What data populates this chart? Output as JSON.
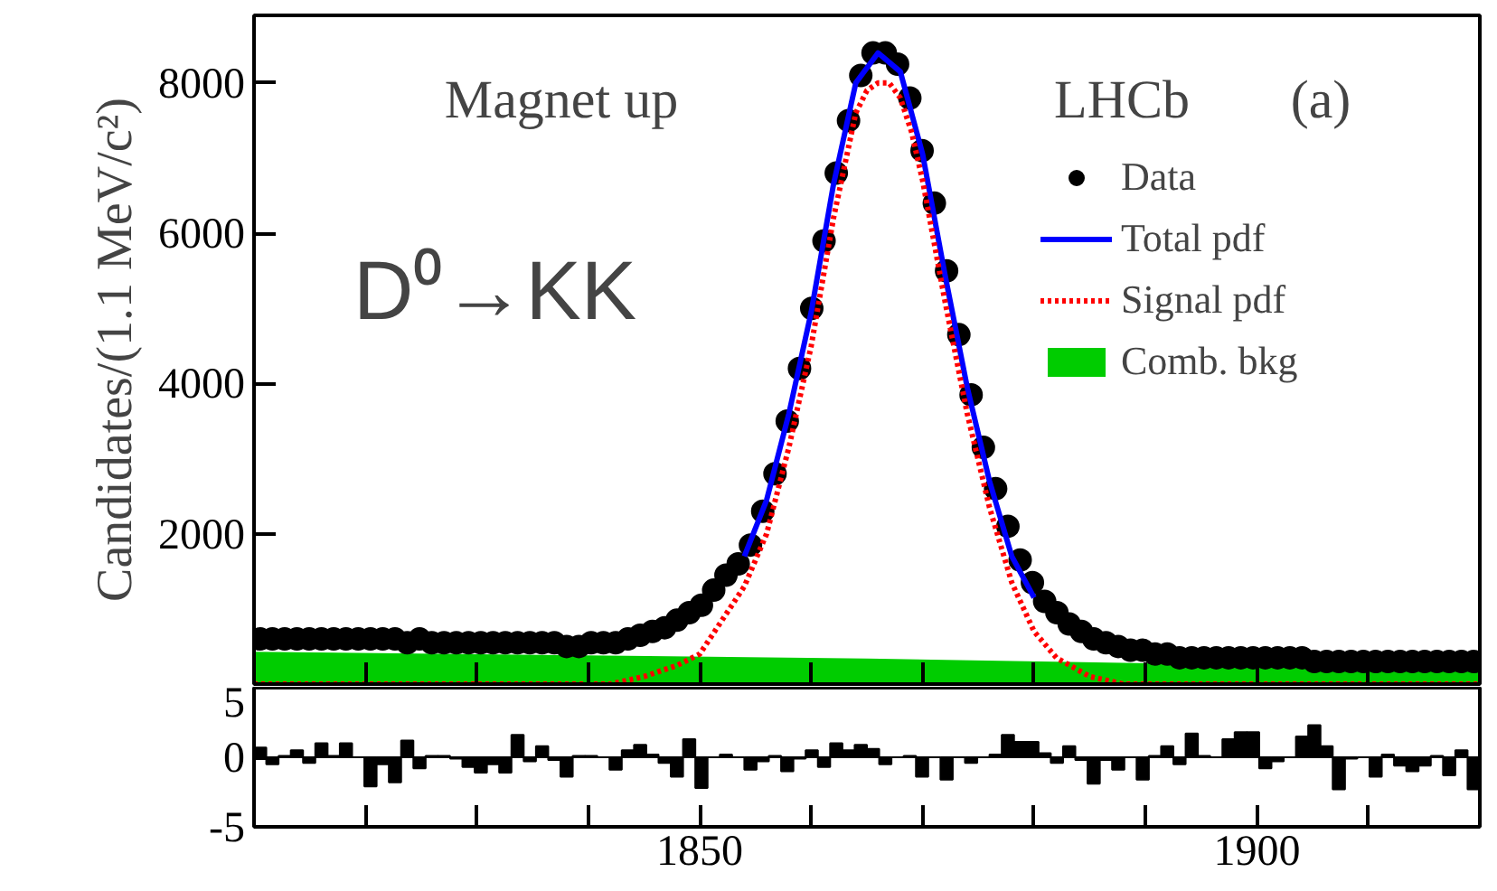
{
  "chart_data": [
    {
      "type": "scatter",
      "ylabel": "Candidates/(1.1 MeV/c²)",
      "xlim": [
        1810,
        1920
      ],
      "ylim": [
        0,
        8900
      ],
      "xticks": [
        1810,
        1820,
        1830,
        1840,
        1850,
        1860,
        1870,
        1880,
        1890,
        1900,
        1910,
        1920
      ],
      "yticks": [
        2000,
        4000,
        6000,
        8000
      ],
      "tick_labels": "y",
      "grid": false,
      "legend": "top right",
      "annotations": [
        "Magnet up",
        "D⁰→KK",
        "LHCb",
        "(a)"
      ],
      "x": [
        1810.55,
        1811.65,
        1812.75,
        1813.85,
        1814.95,
        1816.05,
        1817.15,
        1818.25,
        1819.35,
        1820.45,
        1821.55,
        1822.65,
        1823.75,
        1824.85,
        1825.95,
        1827.05,
        1828.15,
        1829.25,
        1830.35,
        1831.45,
        1832.55,
        1833.65,
        1834.75,
        1835.85,
        1836.95,
        1838.05,
        1839.15,
        1840.25,
        1841.35,
        1842.45,
        1843.55,
        1844.65,
        1845.75,
        1846.85,
        1847.95,
        1849.05,
        1850.15,
        1851.25,
        1852.35,
        1853.45,
        1854.55,
        1855.65,
        1856.75,
        1857.85,
        1858.95,
        1860.05,
        1861.15,
        1862.25,
        1863.35,
        1864.45,
        1865.55,
        1866.65,
        1867.75,
        1868.85,
        1869.95,
        1871.05,
        1872.15,
        1873.25,
        1874.35,
        1875.45,
        1876.55,
        1877.65,
        1878.75,
        1879.85,
        1880.95,
        1882.05,
        1883.15,
        1884.25,
        1885.35,
        1886.45,
        1887.55,
        1888.65,
        1889.75,
        1890.85,
        1891.95,
        1893.05,
        1894.15,
        1895.25,
        1896.35,
        1897.45,
        1898.55,
        1899.65,
        1900.75,
        1901.85,
        1902.95,
        1904.05,
        1905.15,
        1906.25,
        1907.35,
        1908.45,
        1909.55,
        1910.65,
        1911.75,
        1912.85,
        1913.95,
        1915.05,
        1916.15,
        1917.25,
        1918.35,
        1919.45
      ],
      "series": [
        {
          "name": "Data",
          "type": "scatter",
          "marker": "circle",
          "color": "#000000",
          "values": [
            600,
            600,
            600,
            600,
            600,
            600,
            600,
            600,
            600,
            600,
            600,
            600,
            550,
            600,
            550,
            550,
            550,
            550,
            550,
            550,
            550,
            550,
            550,
            550,
            550,
            500,
            500,
            550,
            550,
            550,
            600,
            650,
            700,
            750,
            850,
            950,
            1050,
            1250,
            1450,
            1600,
            1850,
            2300,
            2800,
            3500,
            4200,
            5000,
            5900,
            6800,
            7500,
            8100,
            8400,
            8400,
            8250,
            7800,
            7100,
            6400,
            5500,
            4650,
            3850,
            3150,
            2600,
            2100,
            1650,
            1350,
            1100,
            950,
            800,
            700,
            600,
            550,
            500,
            450,
            450,
            400,
            400,
            350,
            350,
            350,
            350,
            350,
            350,
            350,
            350,
            350,
            350,
            350,
            300,
            300,
            300,
            300,
            300,
            300,
            300,
            300,
            300,
            300,
            300,
            300,
            300,
            300
          ]
        },
        {
          "name": "Total pdf",
          "type": "line",
          "line_style": "solid",
          "color": "#0000ff",
          "x": [
            1854,
            1856,
            1858,
            1860,
            1862,
            1864,
            1866,
            1868,
            1870,
            1872,
            1874,
            1876,
            1878,
            1880
          ],
          "values": [
            1700,
            2450,
            3600,
            4950,
            6650,
            8000,
            8400,
            8150,
            7050,
            5450,
            3950,
            2700,
            1700,
            1150
          ]
        },
        {
          "name": "Signal pdf",
          "type": "line",
          "line_style": "dotted",
          "color": "#ff0000",
          "x": [
            1810,
            1820,
            1830,
            1838,
            1842,
            1845,
            1848,
            1850,
            1852,
            1854,
            1856,
            1858,
            1860,
            1862,
            1864,
            1865,
            1866,
            1867,
            1868,
            1869,
            1870,
            1872,
            1874,
            1876,
            1878,
            1880,
            1882,
            1885,
            1888,
            1892,
            1900,
            1910,
            1920
          ],
          "values": [
            0,
            0,
            0,
            0,
            0,
            100,
            250,
            400,
            850,
            1300,
            2000,
            3150,
            4500,
            6200,
            7600,
            7900,
            8000,
            8000,
            7800,
            7350,
            6700,
            5100,
            3600,
            2350,
            1350,
            700,
            350,
            100,
            0,
            0,
            0,
            0,
            0
          ]
        },
        {
          "name": "Comb. bkg",
          "type": "area",
          "color": "#00cc00",
          "x": [
            1810,
            1865,
            1920
          ],
          "values": [
            430,
            340,
            200
          ]
        }
      ]
    },
    {
      "type": "bar",
      "color": "#000000",
      "xlim": [
        1810,
        1920
      ],
      "ylim": [
        -5,
        5
      ],
      "yticks": [
        -5,
        0,
        5
      ],
      "grid": false,
      "xticks": [
        {
          "value": 1810,
          "label": null
        },
        {
          "value": 1820,
          "label": null
        },
        {
          "value": 1830,
          "label": null
        },
        {
          "value": 1840,
          "label": null
        },
        1850,
        {
          "value": 1860,
          "label": null
        },
        {
          "value": 1870,
          "label": null
        },
        {
          "value": 1880,
          "label": null
        },
        {
          "value": 1890,
          "label": null
        },
        1900,
        {
          "value": 1910,
          "label": null
        },
        {
          "value": 1920,
          "label": null
        }
      ],
      "x": [
        1810.55,
        1811.65,
        1812.75,
        1813.85,
        1814.95,
        1816.05,
        1817.15,
        1818.25,
        1819.35,
        1820.45,
        1821.55,
        1822.65,
        1823.75,
        1824.85,
        1825.95,
        1827.05,
        1828.15,
        1829.25,
        1830.35,
        1831.45,
        1832.55,
        1833.65,
        1834.75,
        1835.85,
        1836.95,
        1838.05,
        1839.15,
        1840.25,
        1841.35,
        1842.45,
        1843.55,
        1844.65,
        1845.75,
        1846.85,
        1847.95,
        1849.05,
        1850.15,
        1851.25,
        1852.35,
        1853.45,
        1854.55,
        1855.65,
        1856.75,
        1857.85,
        1858.95,
        1860.05,
        1861.15,
        1862.25,
        1863.35,
        1864.45,
        1865.55,
        1866.65,
        1867.75,
        1868.85,
        1869.95,
        1871.05,
        1872.15,
        1873.25,
        1874.35,
        1875.45,
        1876.55,
        1877.65,
        1878.75,
        1879.85,
        1880.95,
        1882.05,
        1883.15,
        1884.25,
        1885.35,
        1886.45,
        1887.55,
        1888.65,
        1889.75,
        1890.85,
        1891.95,
        1893.05,
        1894.15,
        1895.25,
        1896.35,
        1897.45,
        1898.55,
        1899.65,
        1900.75,
        1901.85,
        1902.95,
        1904.05,
        1905.15,
        1906.25,
        1907.35,
        1908.45,
        1909.55,
        1910.65,
        1911.75,
        1912.85,
        1913.95,
        1915.05,
        1916.15,
        1917.25,
        1918.35,
        1919.45
      ],
      "values": [
        0.7,
        -0.5,
        0.1,
        0.5,
        -0.4,
        1.0,
        0.1,
        1.0,
        0,
        -2.1,
        -0.5,
        -1.8,
        1.2,
        -0.8,
        0.1,
        0.1,
        -0.1,
        -0.7,
        -1.1,
        -0.5,
        -1.1,
        1.6,
        -0.3,
        0.8,
        -0.2,
        -1.4,
        0.1,
        0.1,
        0,
        -0.9,
        0.5,
        0.9,
        0.2,
        -0.4,
        -1.4,
        1.3,
        -2.2,
        0,
        0.2,
        0,
        -0.9,
        -0.3,
        0.1,
        -1.0,
        -0.1,
        0.5,
        -0.7,
        1.0,
        0.5,
        0.9,
        0.6,
        -0.5,
        0,
        0.1,
        -1.4,
        0,
        -1.6,
        0,
        -0.4,
        0,
        0.2,
        1.6,
        1.1,
        1.1,
        0.3,
        -0.4,
        0.8,
        -0.2,
        -1.9,
        -0.2,
        -0.9,
        0,
        -1.6,
        0.1,
        0.8,
        -0.5,
        1.7,
        0.1,
        0,
        1.3,
        1.8,
        1.8,
        -0.8,
        -0.3,
        0,
        1.5,
        2.3,
        0.8,
        -2.3,
        -0.1,
        0,
        -1.4,
        0.2,
        -0.6,
        -1.0,
        -0.6,
        0.1,
        -1.3,
        0.5,
        -2.3
      ]
    }
  ]
}
